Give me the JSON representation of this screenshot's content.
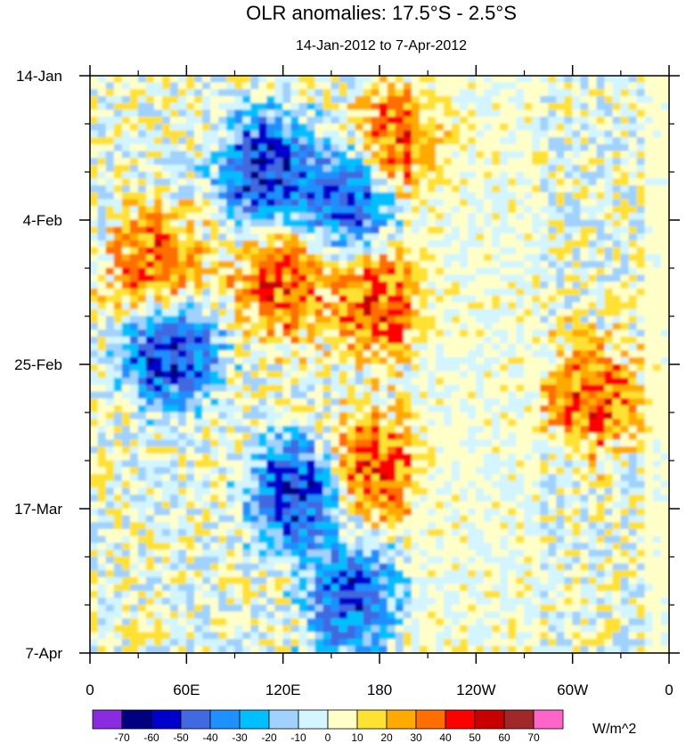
{
  "chart_data": {
    "type": "heatmap",
    "title": "OLR anomalies: 17.5°S - 2.5°S",
    "subtitle": "14-Jan-2012 to 7-Apr-2012",
    "x_ticks": [
      "0",
      "60E",
      "120E",
      "180",
      "120W",
      "60W",
      "0"
    ],
    "x_range_deg_east": [
      0,
      360
    ],
    "y_ticks": [
      "14-Jan",
      "4-Feb",
      "25-Feb",
      "17-Mar",
      "7-Apr"
    ],
    "y_range": [
      "2012-01-14",
      "2012-04-07"
    ],
    "colorbar": {
      "unit_label": "W/m^2",
      "levels": [
        "-70",
        "-60",
        "-50",
        "-40",
        "-30",
        "-20",
        "-10",
        "0",
        "10",
        "20",
        "30",
        "40",
        "50",
        "60",
        "70"
      ],
      "colors": [
        "#8a2be2",
        "#000080",
        "#0000cd",
        "#4169e1",
        "#1e90ff",
        "#00bfff",
        "#a0d2ff",
        "#d2f5ff",
        "#ffffc8",
        "#ffe132",
        "#ffaa00",
        "#ff6e00",
        "#ff0000",
        "#c80000",
        "#a02828",
        "#ff64c8"
      ]
    },
    "features": [
      {
        "date": "2012-01-28",
        "lon": 110,
        "anomaly": -70
      },
      {
        "date": "2012-02-01",
        "lon": 160,
        "anomaly": -60
      },
      {
        "date": "2012-02-23",
        "lon": 50,
        "anomaly": -70
      },
      {
        "date": "2012-03-15",
        "lon": 130,
        "anomaly": -70
      },
      {
        "date": "2012-03-30",
        "lon": 163,
        "anomaly": -60
      },
      {
        "date": "2012-01-24",
        "lon": 195,
        "anomaly": 50
      },
      {
        "date": "2012-02-11",
        "lon": 40,
        "anomaly": 50
      },
      {
        "date": "2012-02-13",
        "lon": 120,
        "anomaly": 50
      },
      {
        "date": "2012-02-16",
        "lon": 180,
        "anomaly": 50
      },
      {
        "date": "2012-03-11",
        "lon": 175,
        "anomaly": 50
      },
      {
        "date": "2012-03-01",
        "lon": 312,
        "anomaly": 50
      }
    ]
  }
}
